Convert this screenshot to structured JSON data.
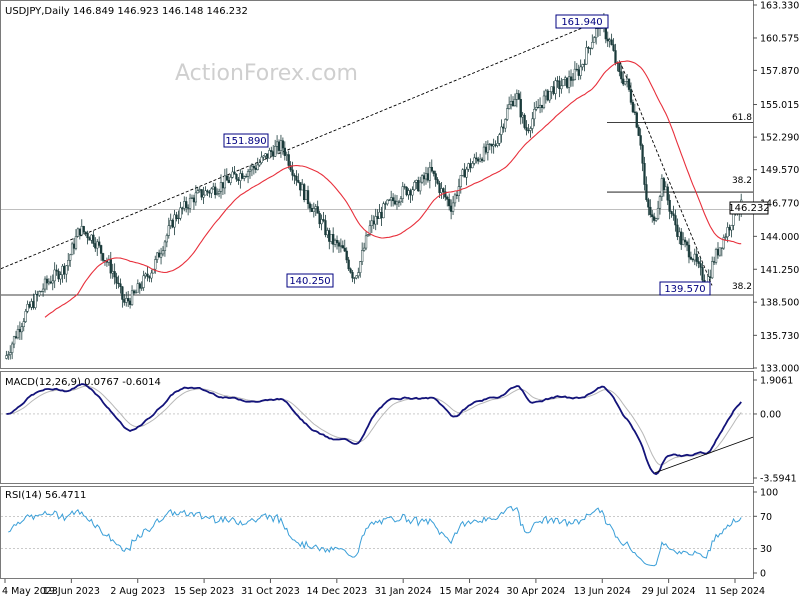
{
  "main_header": "USDJPY,Daily  146.849 146.923 146.148 146.232",
  "watermark": "ActionForex.com",
  "macd_header": "MACD(12,26,9) 0.0767 -0.6014",
  "rsi_header": "RSI(14) 56.4711",
  "colors": {
    "candle": "#1a3a3a",
    "ma": "#e8303c",
    "macd_line": "#13137a",
    "macd_signal": "#b8b8b8",
    "rsi_line": "#3b9fd8",
    "trend_line": "#000000",
    "grid": "#c8c8c8"
  },
  "x_axis": {
    "labels": [
      "4 May 2023",
      "19 Jun 2023",
      "2 Aug 2023",
      "15 Sep 2023",
      "31 Oct 2023",
      "14 Dec 2023",
      "31 Jan 2024",
      "15 Mar 2024",
      "30 Apr 2024",
      "13 Jun 2024",
      "29 Jul 2024",
      "11 Sep 2024"
    ]
  },
  "annotations": {
    "high1": "151.890",
    "low1": "140.250",
    "high2": "161.940",
    "low2": "139.570",
    "fib618": "61.8",
    "fib382_upper": "38.2",
    "fib382_lower": "38.2",
    "current_price": "146.232"
  },
  "chart_data": [
    {
      "type": "candlestick",
      "title": "USDJPY,Daily",
      "ylim": [
        133.0,
        163.33
      ],
      "y_ticks": [
        "163.330",
        "160.575",
        "157.870",
        "155.015",
        "152.290",
        "149.570",
        "146.770",
        "144.000",
        "141.250",
        "138.500",
        "135.730",
        "133.000"
      ],
      "series": [
        {
          "name": "USDJPY",
          "x": [
            "4 May 2023",
            "19 Jun 2023",
            "2 Aug 2023",
            "15 Sep 2023",
            "31 Oct 2023",
            "14 Dec 2023",
            "31 Jan 2024",
            "15 Mar 2024",
            "30 Apr 2024",
            "13 Jun 2024",
            "29 Jul 2024",
            "11 Sep 2024"
          ],
          "values": [
            134.8,
            141.9,
            142.6,
            147.9,
            151.1,
            142.4,
            147.3,
            149.1,
            157.2,
            157.0,
            152.3,
            141.3
          ]
        }
      ],
      "key_levels": {
        "high_jul_2024": 161.94,
        "high_nov_2023": 151.89,
        "low_dec_2023": 140.25,
        "low_sep_2024": 139.57,
        "fib_61_8": 153.5,
        "fib_38_2_upper": 147.7,
        "fib_38_2_lower": 139.1
      }
    },
    {
      "type": "line",
      "title": "MACD(12,26,9) 0.0767 -0.6014",
      "ylim": [
        -3.5941,
        1.9061
      ],
      "y_ticks": [
        "1.9061",
        "0.00",
        "-3.5941"
      ],
      "series": [
        {
          "name": "MACD",
          "x": [
            "4 May 2023",
            "19 Jun 2023",
            "2 Aug 2023",
            "15 Sep 2023",
            "31 Oct 2023",
            "14 Dec 2023",
            "31 Jan 2024",
            "15 Mar 2024",
            "30 Apr 2024",
            "13 Jun 2024",
            "29 Jul 2024",
            "11 Sep 2024"
          ],
          "values": [
            0.2,
            1.7,
            -0.3,
            1.3,
            0.8,
            -2.6,
            1.3,
            0.4,
            1.8,
            1.2,
            -1.0,
            -1.6
          ]
        }
      ]
    },
    {
      "type": "line",
      "title": "RSI(14) 56.4711",
      "ylim": [
        0,
        100
      ],
      "y_ticks": [
        "100",
        "70",
        "30",
        "0"
      ],
      "series": [
        {
          "name": "RSI",
          "x": [
            "4 May 2023",
            "19 Jun 2023",
            "2 Aug 2023",
            "15 Sep 2023",
            "31 Oct 2023",
            "14 Dec 2023",
            "31 Jan 2024",
            "15 Mar 2024",
            "30 Apr 2024",
            "13 Jun 2024",
            "29 Jul 2024",
            "11 Sep 2024"
          ],
          "values": [
            58,
            76,
            44,
            67,
            63,
            33,
            62,
            55,
            81,
            70,
            24,
            40
          ]
        }
      ]
    }
  ]
}
